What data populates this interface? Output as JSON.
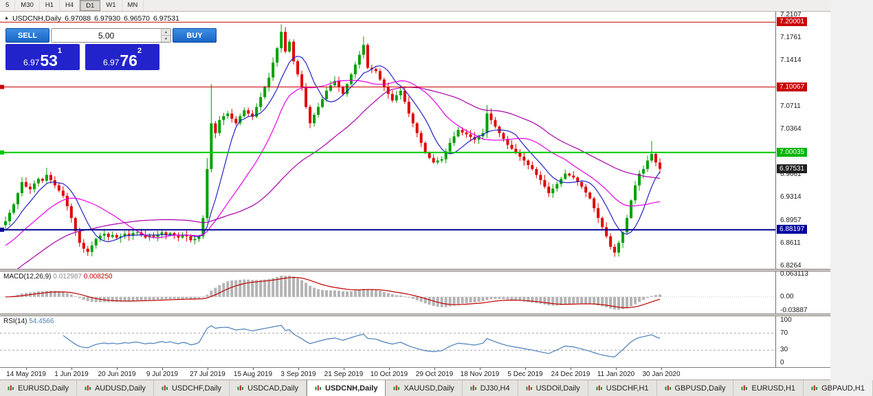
{
  "toolbar": {
    "timeframes": [
      "5",
      "M30",
      "H1",
      "H4",
      "D1",
      "W1",
      "MN"
    ],
    "active": "D1"
  },
  "chart_header": {
    "symbol": "USDCNH,Daily",
    "open": "6.97088",
    "high": "6.97930",
    "low": "6.96570",
    "close": "6.97531"
  },
  "trade_panel": {
    "sell_label": "SELL",
    "buy_label": "BUY",
    "volume": "5.00",
    "sell_price": {
      "base": "6.97",
      "pips": "53",
      "sup": "1"
    },
    "buy_price": {
      "base": "6.97",
      "pips": "76",
      "sup": "2"
    }
  },
  "price_axis": {
    "ticks": [
      {
        "text": "7.2107",
        "price": 7.2107
      },
      {
        "text": "7.1761",
        "price": 7.1761
      },
      {
        "text": "7.1414",
        "price": 7.1414
      },
      {
        "text": "7.0711",
        "price": 7.0711
      },
      {
        "text": "7.0364",
        "price": 7.0364
      },
      {
        "text": "6.9661",
        "price": 6.9661
      },
      {
        "text": "6.9314",
        "price": 6.9314
      },
      {
        "text": "6.8957",
        "price": 6.8957
      },
      {
        "text": "6.8611",
        "price": 6.8611
      },
      {
        "text": "6.8264",
        "price": 6.8264
      }
    ],
    "badges": [
      {
        "text": "7.20001",
        "price": 7.20001,
        "bg": "#c80000"
      },
      {
        "text": "7.10067",
        "price": 7.10067,
        "bg": "#c80000"
      },
      {
        "text": "7.00035",
        "price": 7.00035,
        "bg": "#00b400"
      },
      {
        "text": "6.97531",
        "price": 6.97531,
        "bg": "#202020"
      },
      {
        "text": "6.88197",
        "price": 6.88197,
        "bg": "#0000a0"
      }
    ]
  },
  "macd_panel": {
    "label": "MACD(12,26,9)",
    "value_main": "0.012987",
    "value_signal": "0.008250",
    "axis_ticks": [
      {
        "text": "0.063113",
        "v": 0.063113
      },
      {
        "text": "0.00",
        "v": 0
      },
      {
        "text": "-0.03887",
        "v": -0.03887
      }
    ]
  },
  "rsi_panel": {
    "label": "RSI(14)",
    "value": "54.4566",
    "axis_ticks": [
      {
        "text": "100",
        "v": 100
      },
      {
        "text": "70",
        "v": 70
      },
      {
        "text": "30",
        "v": 30
      },
      {
        "text": "0",
        "v": 0
      }
    ]
  },
  "date_axis": {
    "labels": [
      "14 May 2019",
      "1 Jun 2019",
      "20 Jun 2019",
      "9 Jul 2019",
      "27 Jul 2019",
      "15 Aug 2019",
      "3 Sep 2019",
      "21 Sep 2019",
      "10 Oct 2019",
      "29 Oct 2019",
      "18 Nov 2019",
      "5 Dec 2019",
      "24 Dec 2019",
      "11 Jan 2020",
      "30 Jan 2020"
    ]
  },
  "tabs": {
    "items": [
      "EURUSD,Daily",
      "AUDUSD,Daily",
      "USDCHF,Daily",
      "USDCAD,Daily",
      "USDCNH,Daily",
      "XAUUSD,Daily",
      "DJ30,H4",
      "USDOil,Daily",
      "USDCHF,H1",
      "GBPUSD,Daily",
      "EURUSD,H1",
      "GBPAUD,H1"
    ],
    "active_index": 4
  },
  "chart_data": {
    "type": "candlestick",
    "symbol": "USDCNH",
    "timeframe": "Daily",
    "title": "USDCNH,Daily",
    "ohlc_current": {
      "open": 6.97088,
      "high": 6.9793,
      "low": 6.9657,
      "close": 6.97531
    },
    "y_range": [
      6.8264,
      7.2107
    ],
    "x_labels": [
      "14 May 2019",
      "1 Jun 2019",
      "20 Jun 2019",
      "9 Jul 2019",
      "27 Jul 2019",
      "15 Aug 2019",
      "3 Sep 2019",
      "21 Sep 2019",
      "10 Oct 2019",
      "29 Oct 2019",
      "18 Nov 2019",
      "5 Dec 2019",
      "24 Dec 2019",
      "11 Jan 2020",
      "30 Jan 2020"
    ],
    "closes": [
      6.895,
      6.908,
      6.921,
      6.938,
      6.955,
      6.948,
      6.944,
      6.953,
      6.96,
      6.957,
      6.966,
      6.958,
      6.95,
      6.942,
      6.934,
      6.918,
      6.9,
      6.88,
      6.862,
      6.853,
      6.848,
      6.858,
      6.868,
      6.873,
      6.876,
      6.871,
      6.874,
      6.87,
      6.872,
      6.876,
      6.873,
      6.877,
      6.878,
      6.874,
      6.87,
      6.873,
      6.871,
      6.875,
      6.878,
      6.874,
      6.877,
      6.873,
      6.87,
      6.874,
      6.872,
      6.866,
      6.868,
      6.872,
      6.9,
      6.975,
      7.045,
      7.03,
      7.05,
      7.056,
      7.06,
      7.052,
      7.045,
      7.056,
      7.065,
      7.06,
      7.055,
      7.07,
      7.085,
      7.1,
      7.115,
      7.138,
      7.16,
      7.185,
      7.155,
      7.17,
      7.14,
      7.12,
      7.1,
      7.07,
      7.045,
      7.058,
      7.07,
      7.082,
      7.095,
      7.103,
      7.11,
      7.1,
      7.09,
      7.105,
      7.12,
      7.135,
      7.15,
      7.165,
      7.13,
      7.128,
      7.125,
      7.112,
      7.1,
      7.09,
      7.08,
      7.088,
      7.095,
      7.078,
      7.06,
      7.045,
      7.03,
      7.015,
      7.0,
      6.992,
      6.985,
      6.988,
      6.99,
      7.002,
      7.015,
      7.025,
      7.035,
      7.031,
      7.028,
      7.024,
      7.02,
      7.025,
      7.03,
      7.06,
      7.05,
      7.04,
      7.03,
      7.021,
      7.012,
      7.006,
      7.0,
      6.994,
      6.988,
      6.981,
      6.975,
      6.966,
      6.958,
      6.948,
      6.938,
      6.945,
      6.952,
      6.96,
      6.968,
      6.965,
      6.962,
      6.955,
      6.948,
      6.939,
      6.93,
      6.915,
      6.9,
      6.886,
      6.872,
      6.856,
      6.847,
      6.862,
      6.878,
      6.9,
      6.927,
      6.95,
      6.968,
      6.975,
      6.988,
      6.998,
      6.985,
      6.9753
    ],
    "wick_overrides": [
      {
        "i": 10,
        "h": 6.977
      },
      {
        "i": 20,
        "l": 6.842
      },
      {
        "i": 49,
        "h": 6.992
      },
      {
        "i": 50,
        "h": 7.105
      },
      {
        "i": 67,
        "h": 7.1965
      },
      {
        "i": 87,
        "h": 7.178
      },
      {
        "i": 117,
        "h": 7.073
      },
      {
        "i": 148,
        "l": 6.8405
      },
      {
        "i": 157,
        "h": 7.018
      }
    ],
    "levels": [
      {
        "price": 7.20001,
        "color": "#c80000",
        "width": 1,
        "handle": false
      },
      {
        "price": 7.10067,
        "color": "#c80000",
        "width": 1,
        "handle": true
      },
      {
        "price": 7.00035,
        "color": "#00c800",
        "width": 2,
        "handle": true
      },
      {
        "price": 6.88197,
        "color": "#000090",
        "width": 2,
        "handle": true
      }
    ],
    "moving_averages": [
      {
        "period": 8,
        "color": "#2222c8"
      },
      {
        "period": 20,
        "color": "#e800e8"
      },
      {
        "period": 45,
        "color": "#aa00aa"
      }
    ],
    "prehistory": {
      "start_price": 6.7,
      "points": 50
    },
    "candle_colors": {
      "up": "#00a000",
      "down": "#e00000"
    },
    "indicators": {
      "macd": {
        "fast": 12,
        "slow": 26,
        "signal": 9,
        "range": [
          -0.03887,
          0.063113
        ],
        "hist_color": "#b4b4b4",
        "signal_color": "#c00000",
        "current_main": 0.012987,
        "current_signal": 0.00825
      },
      "rsi": {
        "period": 14,
        "range": [
          0,
          100
        ],
        "levels": [
          70,
          30
        ],
        "color": "#4a7ebb",
        "current": 54.4566
      }
    }
  }
}
